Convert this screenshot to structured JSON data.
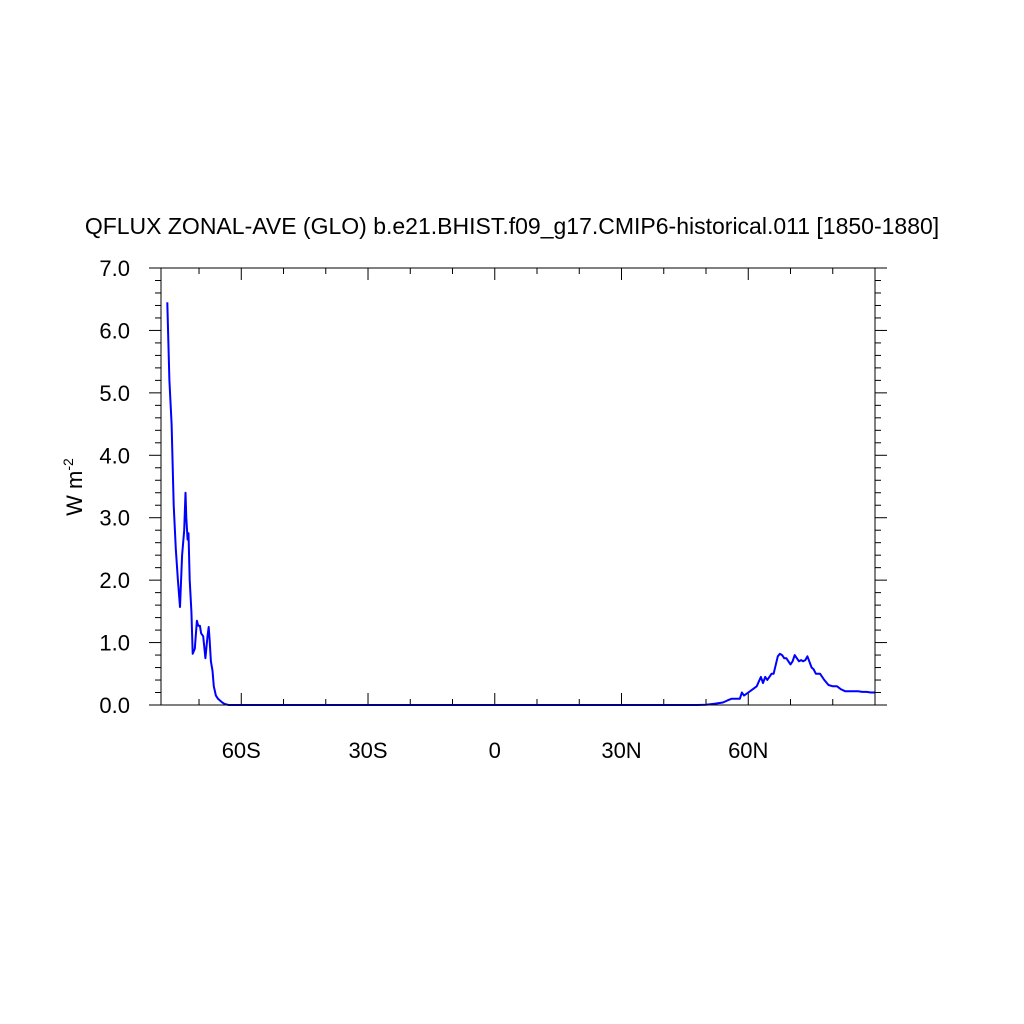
{
  "chart_data": {
    "type": "line",
    "title": "QFLUX ZONAL-AVE (GLO) b.e21.BHIST.f09_g17.CMIP6-historical.011 [1850-1880]",
    "ylabel_main": "W m",
    "ylabel_sup": "-2",
    "xlabel": "",
    "xlim": [
      -79,
      90
    ],
    "ylim": [
      0,
      7
    ],
    "x_ticks": [
      {
        "value": -60,
        "label": "60S"
      },
      {
        "value": -30,
        "label": "30S"
      },
      {
        "value": 0,
        "label": "0"
      },
      {
        "value": 30,
        "label": "30N"
      },
      {
        "value": 60,
        "label": "60N"
      }
    ],
    "x_minor_step": 10,
    "y_ticks": [
      {
        "value": 0,
        "label": "0.0"
      },
      {
        "value": 1,
        "label": "1.0"
      },
      {
        "value": 2,
        "label": "2.0"
      },
      {
        "value": 3,
        "label": "3.0"
      },
      {
        "value": 4,
        "label": "4.0"
      },
      {
        "value": 5,
        "label": "5.0"
      },
      {
        "value": 6,
        "label": "6.0"
      },
      {
        "value": 7,
        "label": "7.0"
      }
    ],
    "y_minor_step": 0.2,
    "grid": false,
    "series": [
      {
        "color": "#0000ff",
        "x": [
          -77.5,
          -77.0,
          -76.5,
          -76.0,
          -75.5,
          -75.0,
          -74.5,
          -74.0,
          -73.5,
          -73.2,
          -73.0,
          -72.7,
          -72.5,
          -72.2,
          -71.8,
          -71.5,
          -71.0,
          -70.5,
          -70.2,
          -69.8,
          -69.5,
          -69.0,
          -68.5,
          -68.0,
          -67.7,
          -67.5,
          -67.2,
          -66.8,
          -66.5,
          -66.0,
          -65.5,
          -65.0,
          -64.5,
          -64.0,
          -63.5,
          -63.0,
          -62.0,
          -61.0,
          -60.0,
          -58.0,
          -55.0,
          -50.0,
          -40.0,
          -30.0,
          -20.0,
          -10.0,
          0.0,
          10.0,
          20.0,
          30.0,
          40.0,
          45.0,
          48.0,
          50.0,
          52.0,
          54.0,
          55.0,
          56.0,
          57.0,
          58.0,
          58.5,
          59.0,
          60.0,
          61.0,
          62.0,
          63.0,
          63.5,
          64.0,
          64.5,
          65.0,
          65.5,
          66.0,
          67.0,
          67.5,
          68.0,
          68.5,
          69.0,
          70.0,
          70.5,
          71.0,
          71.5,
          72.0,
          72.5,
          73.0,
          73.5,
          74.0,
          75.0,
          75.5,
          76.0,
          77.0,
          78.0,
          79.0,
          80.0,
          81.0,
          82.0,
          83.0,
          84.0,
          85.0,
          86.0,
          87.0,
          88.0,
          89.0,
          90.0
        ],
        "values": [
          6.45,
          5.2,
          4.5,
          3.2,
          2.5,
          2.0,
          1.57,
          2.4,
          2.8,
          3.4,
          3.0,
          2.65,
          2.75,
          2.0,
          1.5,
          0.82,
          0.9,
          1.35,
          1.27,
          1.27,
          1.15,
          1.1,
          0.75,
          1.1,
          1.25,
          1.05,
          0.7,
          0.55,
          0.3,
          0.15,
          0.1,
          0.07,
          0.04,
          0.02,
          0.01,
          0.0,
          0.0,
          0.0,
          0.0,
          0.0,
          0.0,
          0.0,
          0.0,
          0.0,
          0.0,
          0.0,
          0.0,
          0.0,
          0.0,
          0.0,
          0.0,
          0.0,
          0.0,
          0.005,
          0.02,
          0.04,
          0.07,
          0.1,
          0.1,
          0.1,
          0.2,
          0.15,
          0.2,
          0.25,
          0.3,
          0.45,
          0.35,
          0.45,
          0.4,
          0.45,
          0.5,
          0.5,
          0.78,
          0.82,
          0.8,
          0.75,
          0.75,
          0.65,
          0.7,
          0.8,
          0.75,
          0.7,
          0.72,
          0.7,
          0.72,
          0.78,
          0.6,
          0.57,
          0.5,
          0.5,
          0.4,
          0.32,
          0.3,
          0.3,
          0.25,
          0.22,
          0.22,
          0.22,
          0.22,
          0.21,
          0.21,
          0.2,
          0.2
        ]
      }
    ]
  }
}
